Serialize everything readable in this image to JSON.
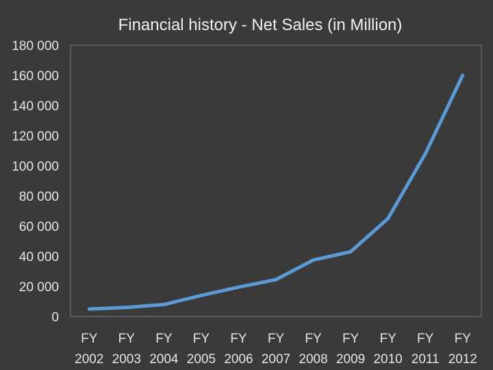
{
  "chart_data": {
    "type": "line",
    "title": "Financial history - Net Sales (in Million)",
    "xlabel": "",
    "ylabel": "",
    "categories": [
      "FY 2002",
      "FY 2003",
      "FY 2004",
      "FY 2005",
      "FY 2006",
      "FY 2007",
      "FY 2008",
      "FY 2009",
      "FY 2010",
      "FY 2011",
      "FY 2012"
    ],
    "category_lines": [
      [
        "FY",
        "2002"
      ],
      [
        "FY",
        "2003"
      ],
      [
        "FY",
        "2004"
      ],
      [
        "FY",
        "2005"
      ],
      [
        "FY",
        "2006"
      ],
      [
        "FY",
        "2007"
      ],
      [
        "FY",
        "2008"
      ],
      [
        "FY",
        "2009"
      ],
      [
        "FY",
        "2010"
      ],
      [
        "FY",
        "2011"
      ],
      [
        "FY",
        "2012"
      ]
    ],
    "series": [
      {
        "values": [
          5000,
          6000,
          8000,
          14000,
          19500,
          24500,
          37500,
          43000,
          65000,
          108000,
          160000
        ]
      }
    ],
    "ylim": [
      0,
      180000
    ],
    "yticks": [
      0,
      20000,
      40000,
      60000,
      80000,
      100000,
      120000,
      140000,
      160000,
      180000
    ],
    "ytick_labels": [
      "0",
      "20 000",
      "40 000",
      "60 000",
      "80 000",
      "100 000",
      "120 000",
      "140 000",
      "160 000",
      "180 000"
    ],
    "grid": false,
    "legend": "none",
    "colors": {
      "background": "#3a3a3a",
      "plot_border": "#7a7a7a",
      "line": "#5b9bd5",
      "text": "#e6e6e6"
    }
  }
}
